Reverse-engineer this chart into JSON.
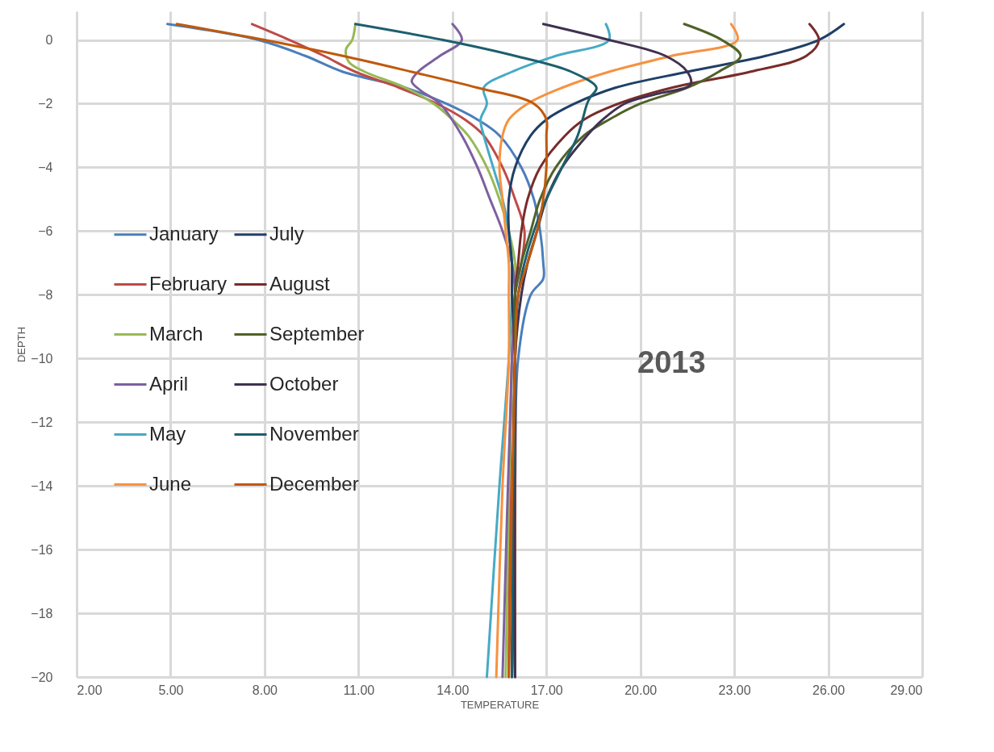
{
  "chart_data": {
    "type": "line",
    "xlabel": "TEMPERATURE",
    "ylabel": "DEPTH",
    "xlim": [
      2,
      29
    ],
    "xticks": [
      {
        "value": 2,
        "label": "2.00"
      },
      {
        "value": 5,
        "label": "5.00"
      },
      {
        "value": 8,
        "label": "8.00"
      },
      {
        "value": 11,
        "label": "11.00"
      },
      {
        "value": 14,
        "label": "14.00"
      },
      {
        "value": 17,
        "label": "17.00"
      },
      {
        "value": 20,
        "label": "20.00"
      },
      {
        "value": 23,
        "label": "23.00"
      },
      {
        "value": 26,
        "label": "26.00"
      },
      {
        "value": 29,
        "label": "29.00"
      }
    ],
    "ylim": [
      -20,
      0.9
    ],
    "yticks": [
      -20,
      -18,
      -16,
      -14,
      -12,
      -10,
      -8,
      -6,
      -4,
      -2,
      0
    ],
    "grid": true,
    "legend": "left",
    "annotations": [
      "2013"
    ],
    "series": [
      {
        "name": "January",
        "color": "#4a7ebb",
        "x": [
          4.9,
          7.8,
          9.3,
          10.5,
          12.5,
          13.8,
          14.8,
          15.5,
          16.2,
          16.6,
          16.8,
          16.9,
          16.9,
          16.5,
          16.1,
          16.0,
          15.9
        ],
        "values": [
          0.5,
          0,
          -0.5,
          -1,
          -1.5,
          -2,
          -2.5,
          -3,
          -4,
          -5,
          -6,
          -7,
          -7.5,
          -8,
          -10,
          -14,
          -20
        ]
      },
      {
        "name": "February",
        "color": "#be4b48",
        "x": [
          7.6,
          8.8,
          9.9,
          10.9,
          12.3,
          13.5,
          14.4,
          15.0,
          15.6,
          16.0,
          16.3,
          16.2,
          16.0,
          15.9,
          15.8
        ],
        "values": [
          0.5,
          0,
          -0.5,
          -1,
          -1.5,
          -2,
          -2.5,
          -3,
          -4,
          -5,
          -6,
          -7,
          -8,
          -10,
          -20
        ]
      },
      {
        "name": "March",
        "color": "#98b954",
        "x": [
          10.9,
          10.8,
          10.6,
          10.7,
          11.2,
          12.5,
          13.4,
          14.0,
          14.5,
          15.1,
          15.5,
          15.8,
          16.0,
          16.0,
          15.9,
          15.7
        ],
        "values": [
          0.5,
          0,
          -0.3,
          -0.7,
          -1,
          -1.5,
          -2,
          -2.5,
          -3,
          -4,
          -5,
          -6,
          -7,
          -8,
          -10,
          -20
        ]
      },
      {
        "name": "April",
        "color": "#7d60a0",
        "x": [
          14.0,
          14.3,
          13.6,
          12.9,
          12.7,
          13.0,
          13.6,
          14.3,
          14.8,
          15.2,
          15.6,
          15.9,
          16.0,
          15.9,
          15.6
        ],
        "values": [
          0.5,
          0,
          -0.5,
          -1,
          -1.3,
          -1.6,
          -2,
          -3,
          -4,
          -5,
          -6,
          -7,
          -8,
          -10,
          -20
        ]
      },
      {
        "name": "May",
        "color": "#46aac5",
        "x": [
          18.9,
          19.0,
          17.3,
          15.9,
          15.0,
          15.1,
          14.9,
          15.0,
          15.3,
          15.6,
          15.8,
          15.9,
          15.9,
          15.8,
          15.5,
          15.1
        ],
        "values": [
          0.5,
          0,
          -0.5,
          -1,
          -1.5,
          -2,
          -2.5,
          -3,
          -4,
          -5,
          -6,
          -7,
          -8,
          -10,
          -14,
          -20
        ]
      },
      {
        "name": "June",
        "color": "#f69240",
        "x": [
          22.9,
          23.1,
          21.0,
          19.0,
          17.5,
          16.4,
          15.8,
          15.6,
          15.5,
          15.6,
          15.7,
          15.8,
          15.8,
          15.8,
          15.6,
          15.4
        ],
        "values": [
          0.5,
          0,
          -0.5,
          -1,
          -1.5,
          -2,
          -2.5,
          -3,
          -4,
          -5,
          -6,
          -7,
          -8,
          -10,
          -14,
          -20
        ]
      },
      {
        "name": "July",
        "color": "#1f3f66",
        "x": [
          26.5,
          25.7,
          24.0,
          21.5,
          19.2,
          17.9,
          17.0,
          16.5,
          16.0,
          15.8,
          15.8,
          15.9,
          15.9,
          16.0,
          15.9
        ],
        "values": [
          0.5,
          0,
          -0.5,
          -1,
          -1.5,
          -2,
          -2.5,
          -3,
          -4,
          -5,
          -6,
          -7,
          -8,
          -10,
          -20
        ]
      },
      {
        "name": "August",
        "color": "#772c2a",
        "x": [
          25.4,
          25.7,
          25.3,
          23.5,
          21.0,
          19.3,
          18.2,
          17.6,
          16.8,
          16.4,
          16.2,
          16.1,
          16.0,
          16.0,
          16.0
        ],
        "values": [
          0.5,
          0,
          -0.5,
          -1,
          -1.5,
          -2,
          -2.5,
          -3,
          -4,
          -5,
          -6,
          -7,
          -8,
          -10,
          -20
        ]
      },
      {
        "name": "September",
        "color": "#4f6228",
        "x": [
          21.4,
          22.6,
          23.2,
          22.5,
          21.5,
          20.0,
          19.0,
          18.2,
          17.3,
          16.8,
          16.5,
          16.2,
          16.0,
          16.0,
          15.9
        ],
        "values": [
          0.5,
          0,
          -0.5,
          -1,
          -1.5,
          -2,
          -2.5,
          -3,
          -4,
          -5,
          -6,
          -7,
          -8,
          -10,
          -20
        ]
      },
      {
        "name": "October",
        "color": "#3f3151",
        "x": [
          16.9,
          19.0,
          20.8,
          21.5,
          21.6,
          20.5,
          19.5,
          18.8,
          18.3,
          17.5,
          17.0,
          16.7,
          16.4,
          16.2,
          16.0,
          16.0
        ],
        "values": [
          0.5,
          0,
          -0.5,
          -1,
          -1.4,
          -1.7,
          -2,
          -2.5,
          -3,
          -4,
          -5,
          -6,
          -7,
          -8,
          -10,
          -20
        ]
      },
      {
        "name": "November",
        "color": "#1c5f6e",
        "x": [
          10.9,
          13.7,
          16.0,
          17.8,
          18.6,
          18.4,
          18.3,
          18.0,
          17.5,
          17.0,
          16.6,
          16.3,
          16.1,
          16.0,
          15.9
        ],
        "values": [
          0.5,
          0,
          -0.5,
          -1,
          -1.5,
          -1.8,
          -2,
          -3,
          -4,
          -5,
          -6,
          -7,
          -8,
          -10,
          -20
        ]
      },
      {
        "name": "December",
        "color": "#c0590b",
        "x": [
          5.2,
          8.0,
          10.5,
          12.7,
          14.8,
          16.6,
          17.0,
          17.0,
          17.0,
          16.9,
          16.7,
          16.4,
          16.1,
          16.0,
          15.8
        ],
        "values": [
          0.5,
          0,
          -0.5,
          -1,
          -1.5,
          -2,
          -2.5,
          -3,
          -4,
          -5,
          -6,
          -7,
          -8,
          -10,
          -20
        ]
      }
    ]
  }
}
